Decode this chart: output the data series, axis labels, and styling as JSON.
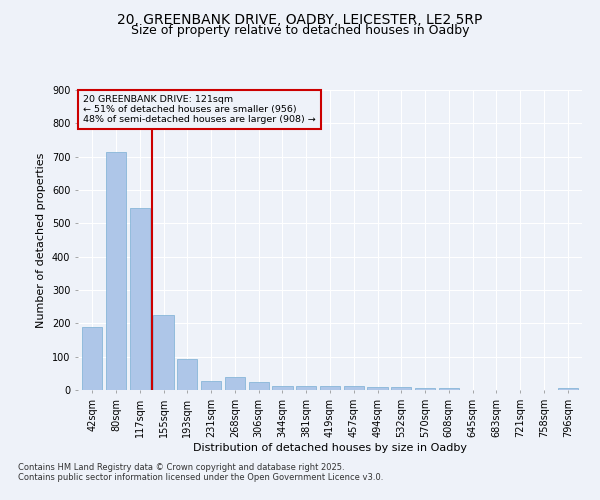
{
  "title1": "20, GREENBANK DRIVE, OADBY, LEICESTER, LE2 5RP",
  "title2": "Size of property relative to detached houses in Oadby",
  "xlabel": "Distribution of detached houses by size in Oadby",
  "ylabel": "Number of detached properties",
  "categories": [
    "42sqm",
    "80sqm",
    "117sqm",
    "155sqm",
    "193sqm",
    "231sqm",
    "268sqm",
    "306sqm",
    "344sqm",
    "381sqm",
    "419sqm",
    "457sqm",
    "494sqm",
    "532sqm",
    "570sqm",
    "608sqm",
    "645sqm",
    "683sqm",
    "721sqm",
    "758sqm",
    "796sqm"
  ],
  "values": [
    190,
    713,
    547,
    225,
    92,
    27,
    38,
    25,
    13,
    12,
    12,
    13,
    8,
    10,
    7,
    6,
    0,
    0,
    0,
    0,
    7
  ],
  "bar_color": "#aec6e8",
  "bar_edge_color": "#7aafd4",
  "highlight_line_color": "#cc0000",
  "annotation_text": "20 GREENBANK DRIVE: 121sqm\n← 51% of detached houses are smaller (956)\n48% of semi-detached houses are larger (908) →",
  "annotation_box_color": "#cc0000",
  "ylim": [
    0,
    900
  ],
  "yticks": [
    0,
    100,
    200,
    300,
    400,
    500,
    600,
    700,
    800,
    900
  ],
  "footer1": "Contains HM Land Registry data © Crown copyright and database right 2025.",
  "footer2": "Contains public sector information licensed under the Open Government Licence v3.0.",
  "bg_color": "#eef2f9",
  "grid_color": "#ffffff",
  "title1_fontsize": 10,
  "title2_fontsize": 9,
  "axis_label_fontsize": 8,
  "tick_fontsize": 7,
  "footer_fontsize": 6
}
